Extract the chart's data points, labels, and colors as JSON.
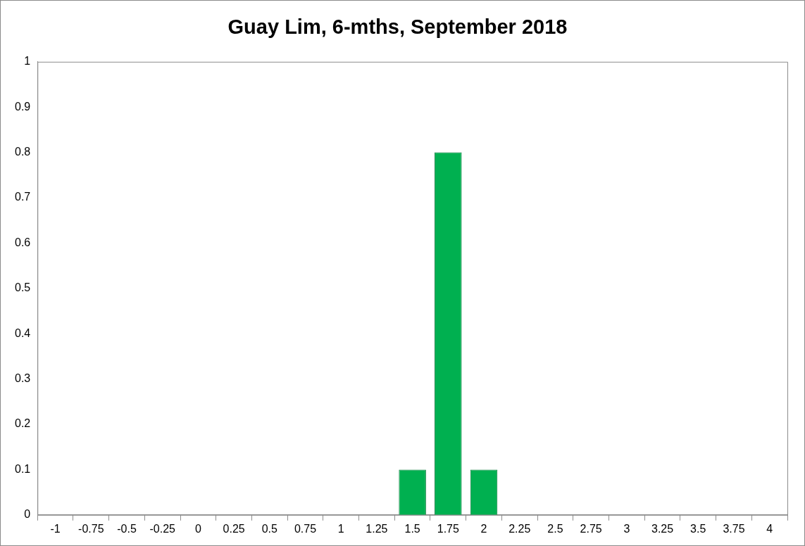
{
  "chart_data": {
    "type": "bar",
    "title": "Guay Lim, 6-mths, September 2018",
    "categories": [
      "-1",
      "-0.75",
      "-0.5",
      "-0.25",
      "0",
      "0.25",
      "0.5",
      "0.75",
      "1",
      "1.25",
      "1.5",
      "1.75",
      "2",
      "2.25",
      "2.5",
      "2.75",
      "3",
      "3.25",
      "3.5",
      "3.75",
      "4"
    ],
    "values": [
      0,
      0,
      0,
      0,
      0,
      0,
      0,
      0,
      0,
      0,
      0.1,
      0.8,
      0.1,
      0,
      0,
      0,
      0,
      0,
      0,
      0,
      0
    ],
    "color": "#00b050",
    "ylim": [
      0,
      1
    ],
    "yticks": [
      0,
      0.1,
      0.2,
      0.3,
      0.4,
      0.5,
      0.6,
      0.7,
      0.8,
      0.9,
      1
    ],
    "grid": false,
    "legend": false
  }
}
